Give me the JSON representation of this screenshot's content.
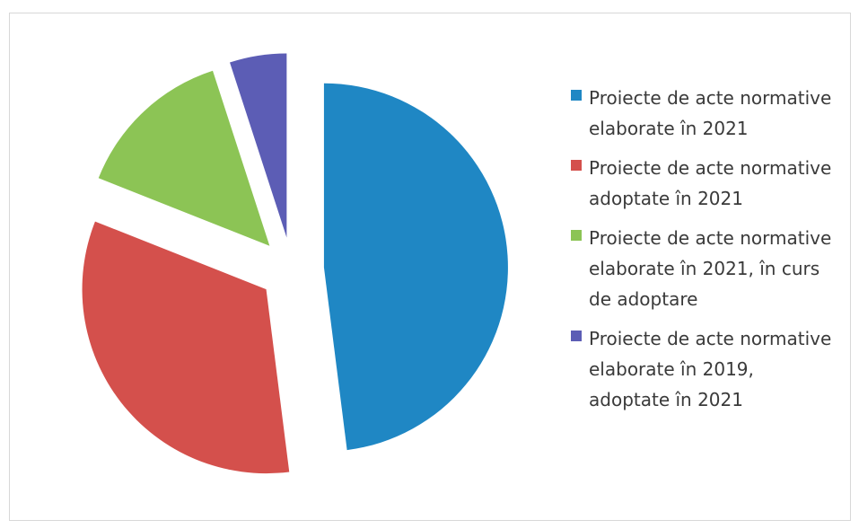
{
  "chart_data": {
    "type": "pie",
    "exploded": true,
    "categories": [
      "Proiecte de acte normative elaborate în 2021",
      "Proiecte de acte normative adoptate în 2021",
      "Proiecte de acte normative elaborate în 2021, în curs de adoptare",
      "Proiecte de acte normative elaborate în 2019, adoptate în 2021"
    ],
    "values": [
      48,
      33,
      14,
      5
    ],
    "colors": [
      "#1f87c4",
      "#d4504c",
      "#8cc455",
      "#5c5db5"
    ],
    "legend": "right"
  }
}
